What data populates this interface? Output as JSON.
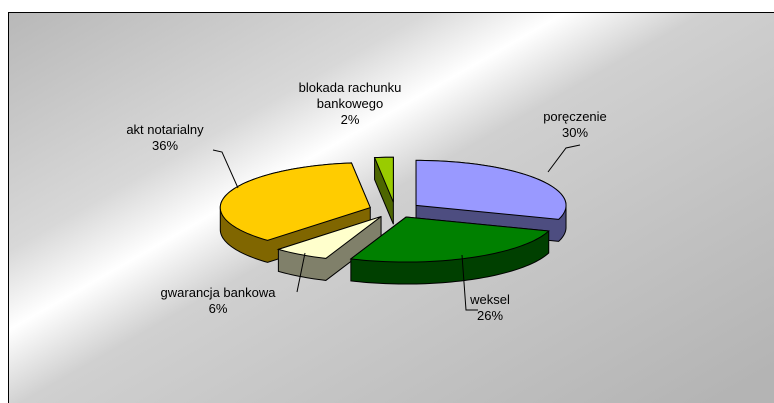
{
  "chart_data": {
    "type": "pie",
    "categories": [
      "poręczenie",
      "weksel",
      "gwarancja bankowa",
      "akt notarialny",
      "blokada rachunku bankowego"
    ],
    "values": [
      30,
      26,
      6,
      36,
      2
    ],
    "value_labels": [
      "30%",
      "26%",
      "6%",
      "36%",
      "2%"
    ],
    "colors": [
      "#9999ff",
      "#008000",
      "#ffffcc",
      "#ffcc00",
      "#99cc00"
    ],
    "side_colors": [
      "#4d4d80",
      "#004000",
      "#80806a",
      "#806600",
      "#4d6600"
    ],
    "exploded": true
  }
}
